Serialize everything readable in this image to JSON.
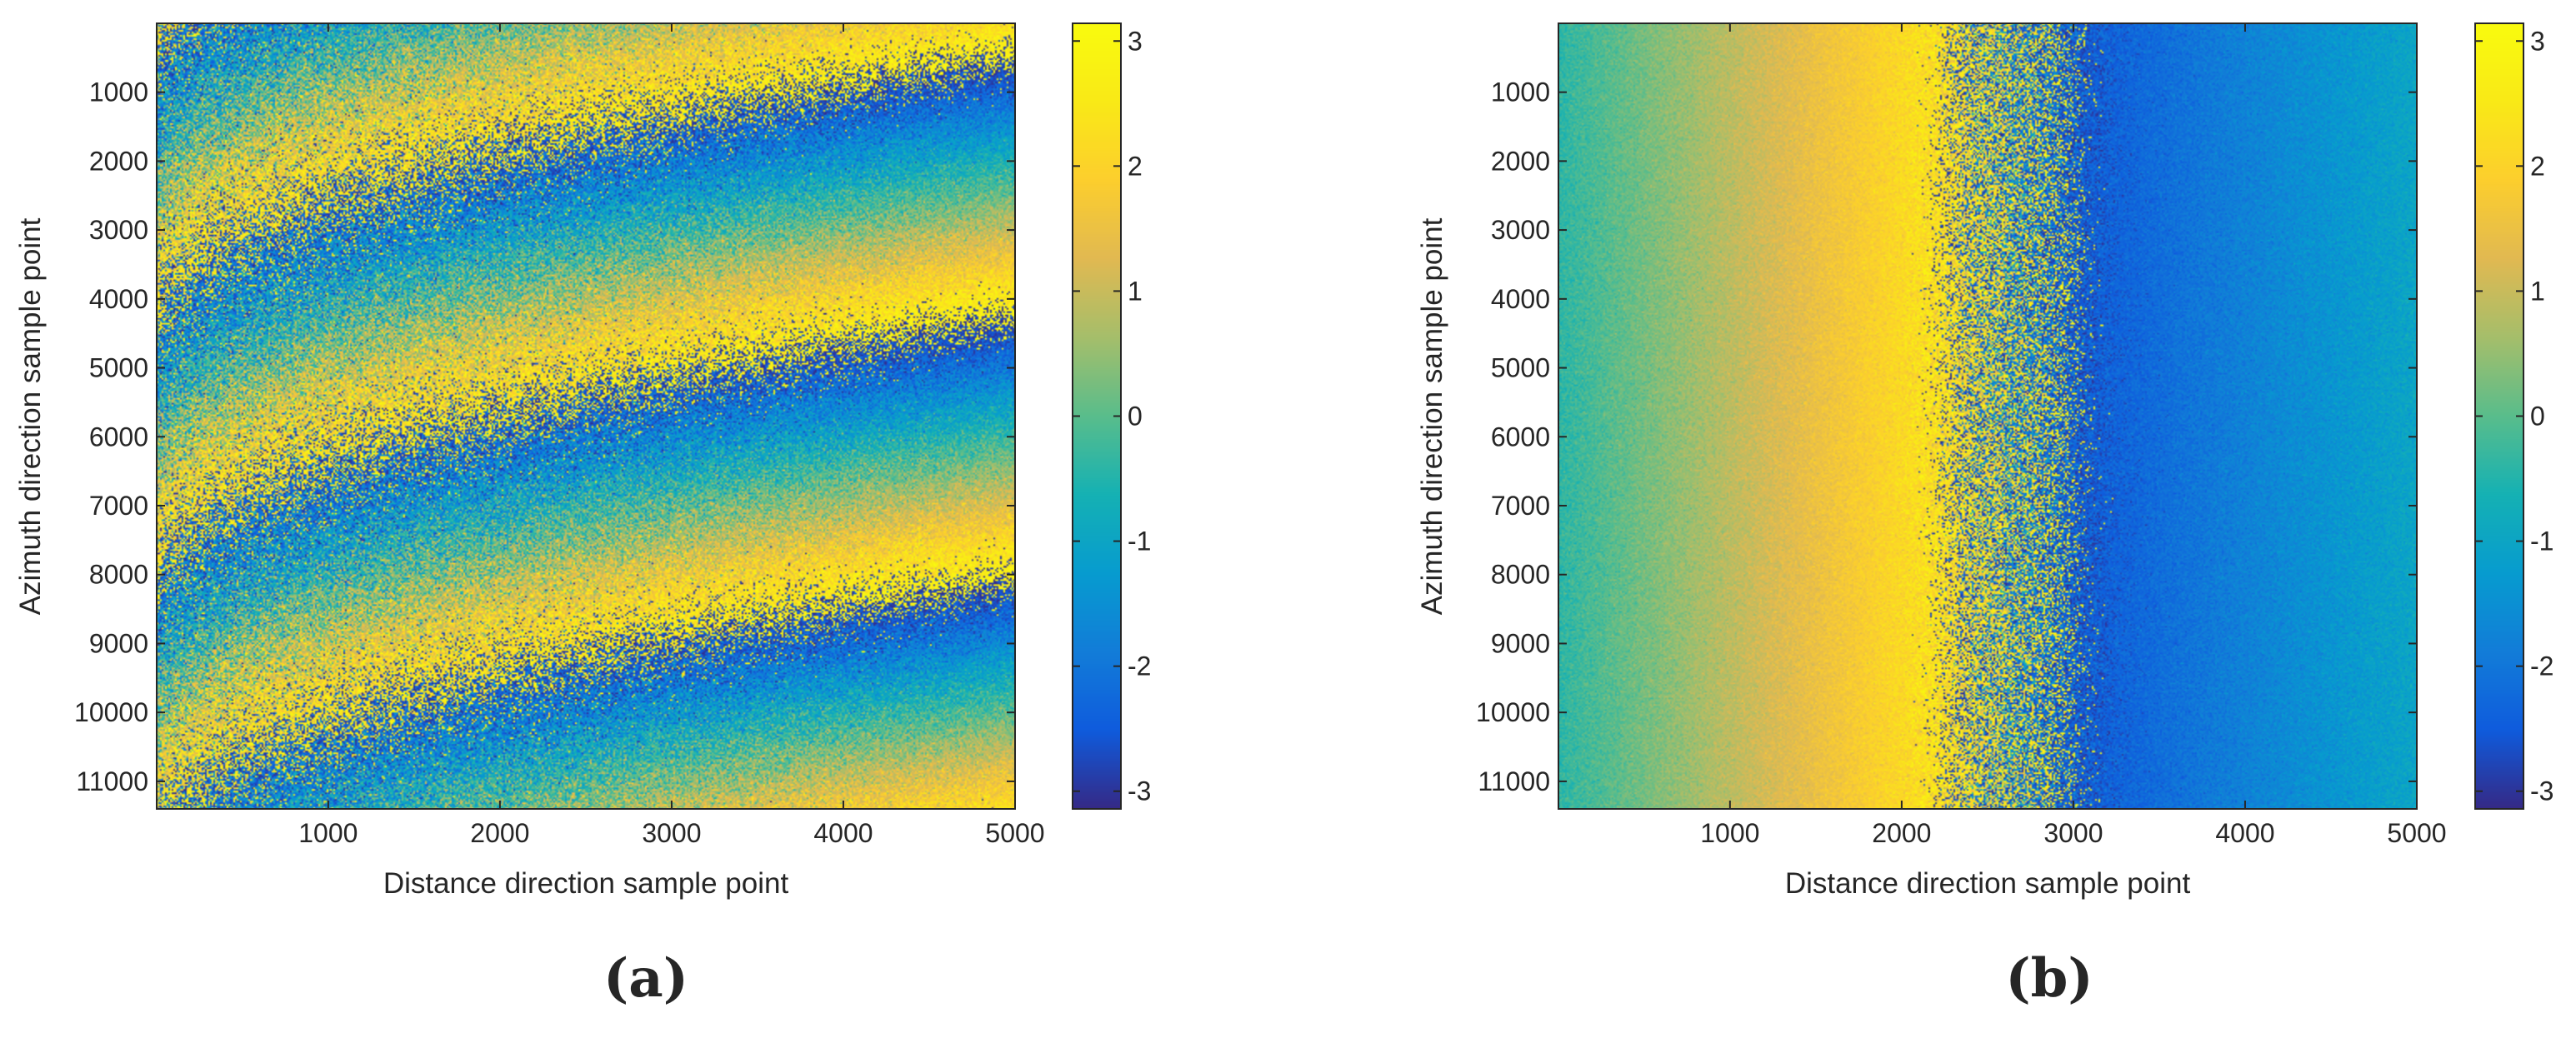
{
  "figure": {
    "panels": [
      "(a)",
      "(b)"
    ]
  },
  "chart_data": [
    {
      "type": "heatmap",
      "panel_label": "(a)",
      "title": "",
      "xlabel": "Distance direction sample point",
      "ylabel": "Azimuth direction sample point",
      "xlim": [
        1,
        5000
      ],
      "ylim": [
        1,
        11400
      ],
      "y_reversed": true,
      "x_ticks": [
        1000,
        2000,
        3000,
        4000,
        5000
      ],
      "y_ticks": [
        1000,
        2000,
        3000,
        4000,
        5000,
        6000,
        7000,
        8000,
        9000,
        10000,
        11000
      ],
      "colorbar": {
        "min": -3.14159,
        "max": 3.14159,
        "ticks": [
          3,
          2,
          1,
          0,
          -1,
          -2,
          -3
        ],
        "colormap": "parula"
      },
      "pattern": "curved_fringes",
      "fringe_cycles_along_azimuth": 3,
      "noise_level": 1.1
    },
    {
      "type": "heatmap",
      "panel_label": "(b)",
      "title": "",
      "xlabel": "Distance direction sample point",
      "ylabel": "Azimuth direction sample point",
      "xlim": [
        1,
        5000
      ],
      "ylim": [
        1,
        11400
      ],
      "y_reversed": true,
      "x_ticks": [
        1000,
        2000,
        3000,
        4000,
        5000
      ],
      "y_ticks": [
        1000,
        2000,
        3000,
        4000,
        5000,
        6000,
        7000,
        8000,
        9000,
        10000,
        11000
      ],
      "colorbar": {
        "min": -3.14159,
        "max": 3.14159,
        "ticks": [
          3,
          2,
          1,
          0,
          -1,
          -2,
          -3
        ],
        "colormap": "parula"
      },
      "pattern": "range_ramp",
      "phase_wrap_at_range": 2600,
      "noise_level": 0.9
    }
  ]
}
